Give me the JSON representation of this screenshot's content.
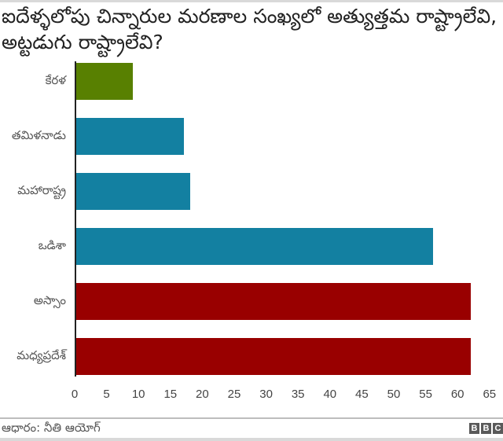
{
  "title": "ఐదేళ్ళలోపు చిన్నారుల మరణాల సంఖ్యలో అత్యుత్తమ రాష్ట్రాలేవి, అట్టడుగు రాష్ట్రాలేవి?",
  "source": "ఆధారం: నీతి ఆయోగ్",
  "brand": {
    "letters": [
      "B",
      "B",
      "C"
    ]
  },
  "colors": {
    "best": "#588001",
    "middle": "#1380A1",
    "worst": "#990000"
  },
  "chart_data": {
    "type": "bar",
    "orientation": "horizontal",
    "title": "ఐదేళ్ళలోపు చిన్నారుల మరణాల సంఖ్యలో అత్యుత్తమ రాష్ట్రాలేవి, అట్టడుగు రాష్ట్రాలేవి?",
    "categories": [
      "కేరళ",
      "తమిళనాడు",
      "మహారాష్ట్ర",
      "ఒడిశా",
      "అస్సాం",
      "మధ్యప్రదేశ్"
    ],
    "values": [
      9,
      17,
      18,
      56,
      62,
      62
    ],
    "bar_colors": [
      "#588001",
      "#1380A1",
      "#1380A1",
      "#1380A1",
      "#990000",
      "#990000"
    ],
    "xlabel": "",
    "ylabel": "",
    "xlim": [
      0,
      65
    ],
    "xticks": [
      0,
      5,
      10,
      15,
      20,
      25,
      30,
      35,
      40,
      45,
      50,
      55,
      60,
      65
    ],
    "grid": false,
    "legend": null,
    "source": "ఆధారం: నీతి ఆయోగ్"
  }
}
